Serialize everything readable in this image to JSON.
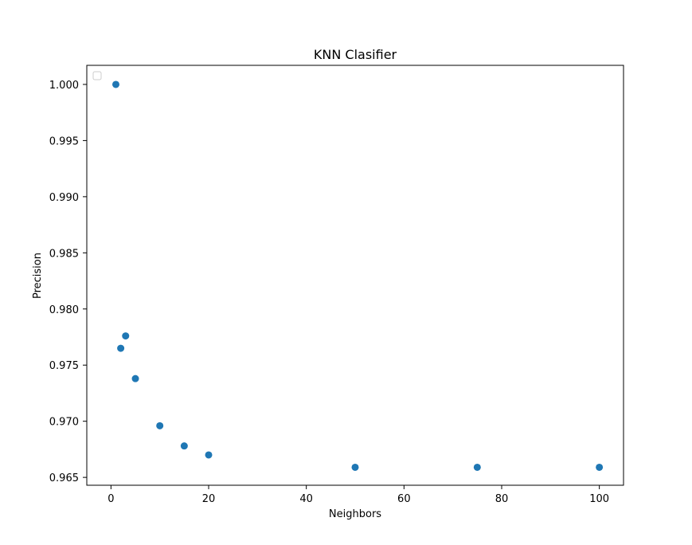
{
  "chart_data": {
    "type": "scatter",
    "title": "KNN Clasifier",
    "xlabel": "Neighbors",
    "ylabel": "Precision",
    "xlim": [
      -4.95,
      104.95
    ],
    "ylim": [
      0.9643,
      1.0017
    ],
    "xticks": [
      0,
      20,
      40,
      60,
      80,
      100
    ],
    "xtick_labels": [
      "0",
      "20",
      "40",
      "60",
      "80",
      "100"
    ],
    "yticks": [
      0.965,
      0.97,
      0.975,
      0.98,
      0.985,
      0.99,
      0.995,
      1.0
    ],
    "ytick_labels": [
      "0.965",
      "0.970",
      "0.975",
      "0.980",
      "0.985",
      "0.990",
      "0.995",
      "1.000"
    ],
    "grid": false,
    "legend": {
      "position": "upper-left",
      "entries": []
    },
    "series": [
      {
        "color": "#1f77b4",
        "points": [
          {
            "x": 1,
            "y": 1.0
          },
          {
            "x": 2,
            "y": 0.9765
          },
          {
            "x": 3,
            "y": 0.9776
          },
          {
            "x": 5,
            "y": 0.9738
          },
          {
            "x": 10,
            "y": 0.9696
          },
          {
            "x": 15,
            "y": 0.9678
          },
          {
            "x": 20,
            "y": 0.967
          },
          {
            "x": 50,
            "y": 0.9659
          },
          {
            "x": 75,
            "y": 0.9659
          },
          {
            "x": 100,
            "y": 0.9659
          }
        ]
      }
    ]
  }
}
